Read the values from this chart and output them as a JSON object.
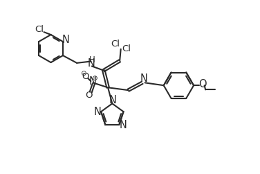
{
  "bg_color": "#ffffff",
  "line_color": "#2a2a2a",
  "line_width": 1.5,
  "font_size": 9.5
}
